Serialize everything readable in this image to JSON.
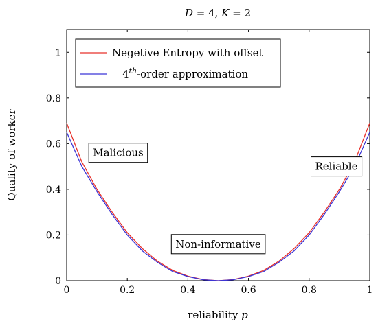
{
  "chart_data": {
    "type": "line",
    "title": {
      "lead": "D",
      "a": " = 4, ",
      "lead2": "K",
      "b": " = 2"
    },
    "xlabel": {
      "text": "reliability ",
      "var": "p"
    },
    "ylabel": "Quality of worker",
    "xlim": [
      0,
      1
    ],
    "ylim": [
      0,
      1.1
    ],
    "xticks": [
      "0",
      "0.2",
      "0.4",
      "0.6",
      "0.8",
      "1"
    ],
    "xtick_values": [
      0,
      0.2,
      0.4,
      0.6,
      0.8,
      1
    ],
    "yticks": [
      "0",
      "0.2",
      "0.4",
      "0.6",
      "0.8",
      "1"
    ],
    "ytick_values": [
      0,
      0.2,
      0.4,
      0.6,
      0.8,
      1
    ],
    "grid": false,
    "legend_position": "top-left",
    "series": [
      {
        "legend": "Negetive Entropy with offset",
        "color": "#e8302a",
        "x": [
          0,
          0.05,
          0.1,
          0.15,
          0.2,
          0.25,
          0.3,
          0.35,
          0.4,
          0.45,
          0.5,
          0.55,
          0.6,
          0.65,
          0.7,
          0.75,
          0.8,
          0.85,
          0.9,
          0.95,
          1
        ],
        "y": [
          0.69,
          0.52,
          0.4,
          0.3,
          0.21,
          0.14,
          0.085,
          0.045,
          0.02,
          0.005,
          0,
          0.005,
          0.02,
          0.045,
          0.085,
          0.14,
          0.21,
          0.3,
          0.4,
          0.52,
          0.69
        ]
      },
      {
        "legend_sup": "th",
        "legend_pre": "4",
        "legend_post": "-order approximation",
        "color": "#3b34d6",
        "x": [
          0,
          0.05,
          0.1,
          0.15,
          0.2,
          0.25,
          0.3,
          0.35,
          0.4,
          0.45,
          0.5,
          0.55,
          0.6,
          0.65,
          0.7,
          0.75,
          0.8,
          0.85,
          0.9,
          0.95,
          1
        ],
        "y": [
          0.65,
          0.5,
          0.39,
          0.29,
          0.2,
          0.13,
          0.08,
          0.04,
          0.018,
          0.004,
          0,
          0.004,
          0.018,
          0.04,
          0.08,
          0.13,
          0.2,
          0.29,
          0.39,
          0.5,
          0.65
        ]
      }
    ],
    "annotations": [
      {
        "text": "Malicious",
        "x": 0.17,
        "y": 0.56
      },
      {
        "text": "Non-informative",
        "x": 0.5,
        "y": 0.16
      },
      {
        "text": "Reliable",
        "x": 0.89,
        "y": 0.5
      }
    ]
  }
}
